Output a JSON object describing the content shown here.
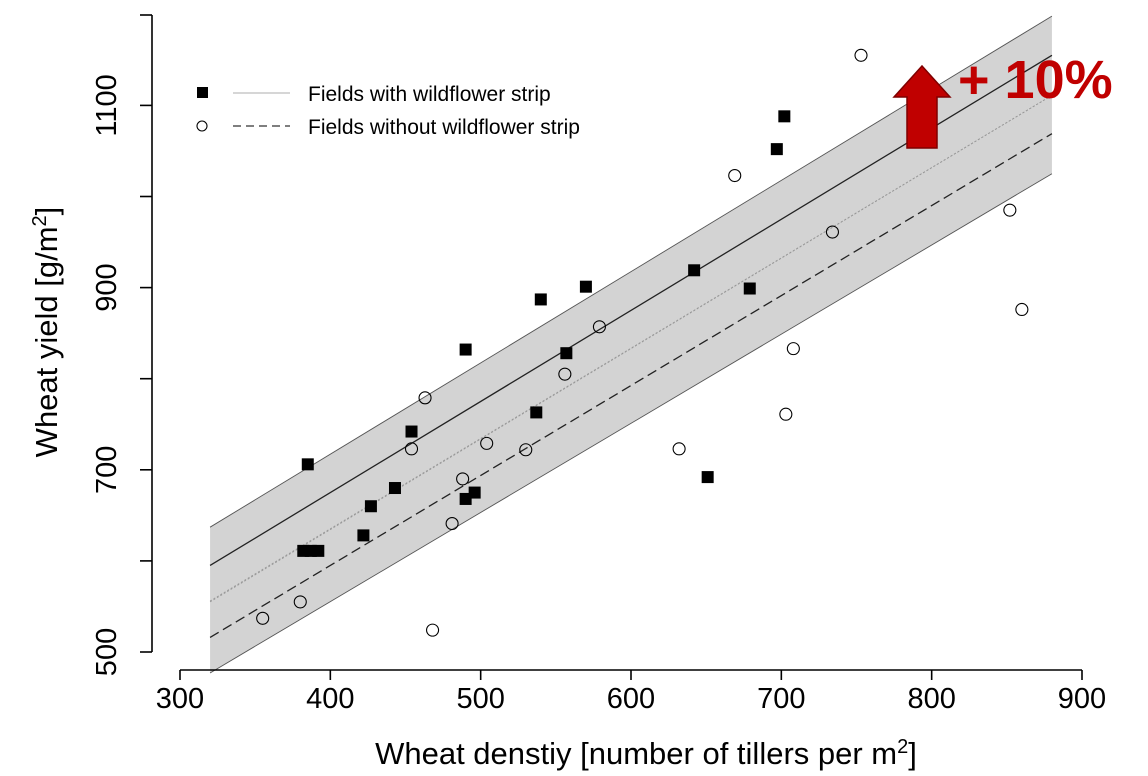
{
  "chart_data": {
    "type": "scatter",
    "xlabel": "Wheat denstiy [number of tillers per m",
    "xlabel_sup": "2",
    "xlabel_end": "]",
    "ylabel": "Wheat yield [g/m",
    "ylabel_sup": "2",
    "ylabel_end": "]",
    "xlim": [
      300,
      900
    ],
    "ylim": [
      500,
      1200
    ],
    "xticks": [
      300,
      400,
      500,
      600,
      700,
      800,
      900
    ],
    "yticks": [
      500,
      700,
      900,
      1100
    ],
    "grid": false,
    "legend_position": "top-left",
    "colors": {
      "band": "#d3d3d3",
      "annotation": "#c00000",
      "marker": "#000000"
    },
    "series": [
      {
        "name": "Fields with wildflower strip",
        "marker": "filled-square",
        "line": "solid",
        "points": [
          [
            382,
            611
          ],
          [
            387,
            611
          ],
          [
            392,
            611
          ],
          [
            385,
            706
          ],
          [
            422,
            628
          ],
          [
            427,
            660
          ],
          [
            443,
            680
          ],
          [
            454,
            742
          ],
          [
            490,
            668
          ],
          [
            496,
            675
          ],
          [
            490,
            832
          ],
          [
            537,
            763
          ],
          [
            540,
            887
          ],
          [
            557,
            828
          ],
          [
            570,
            901
          ],
          [
            642,
            919
          ],
          [
            651,
            692
          ],
          [
            679,
            899
          ],
          [
            697,
            1052
          ],
          [
            702,
            1088
          ]
        ],
        "fit": {
          "x": [
            320,
            880
          ],
          "y": [
            595,
            1155
          ]
        },
        "band_upper": [
          [
            320,
            637
          ],
          [
            880,
            1198
          ]
        ],
        "band_lower": [
          [
            320,
            555
          ],
          [
            880,
            1111
          ]
        ]
      },
      {
        "name": "Fields without wildflower strip",
        "marker": "open-circle",
        "line": "dashed",
        "points": [
          [
            355,
            537
          ],
          [
            380,
            555
          ],
          [
            463,
            779
          ],
          [
            454,
            723
          ],
          [
            468,
            524
          ],
          [
            481,
            641
          ],
          [
            488,
            690
          ],
          [
            504,
            729
          ],
          [
            530,
            722
          ],
          [
            556,
            805
          ],
          [
            579,
            857
          ],
          [
            632,
            723
          ],
          [
            669,
            1023
          ],
          [
            703,
            761
          ],
          [
            708,
            833
          ],
          [
            734,
            961
          ],
          [
            753,
            1155
          ],
          [
            852,
            985
          ],
          [
            860,
            876
          ]
        ],
        "fit": {
          "x": [
            320,
            880
          ],
          "y": [
            516,
            1069
          ]
        },
        "band_upper": [
          [
            320,
            556
          ],
          [
            880,
            1111
          ]
        ],
        "band_lower": [
          [
            320,
            477
          ],
          [
            880,
            1025
          ]
        ]
      }
    ],
    "annotation": {
      "text": "+ 10%",
      "arrow": "up",
      "x": 790,
      "y": 1100
    }
  }
}
